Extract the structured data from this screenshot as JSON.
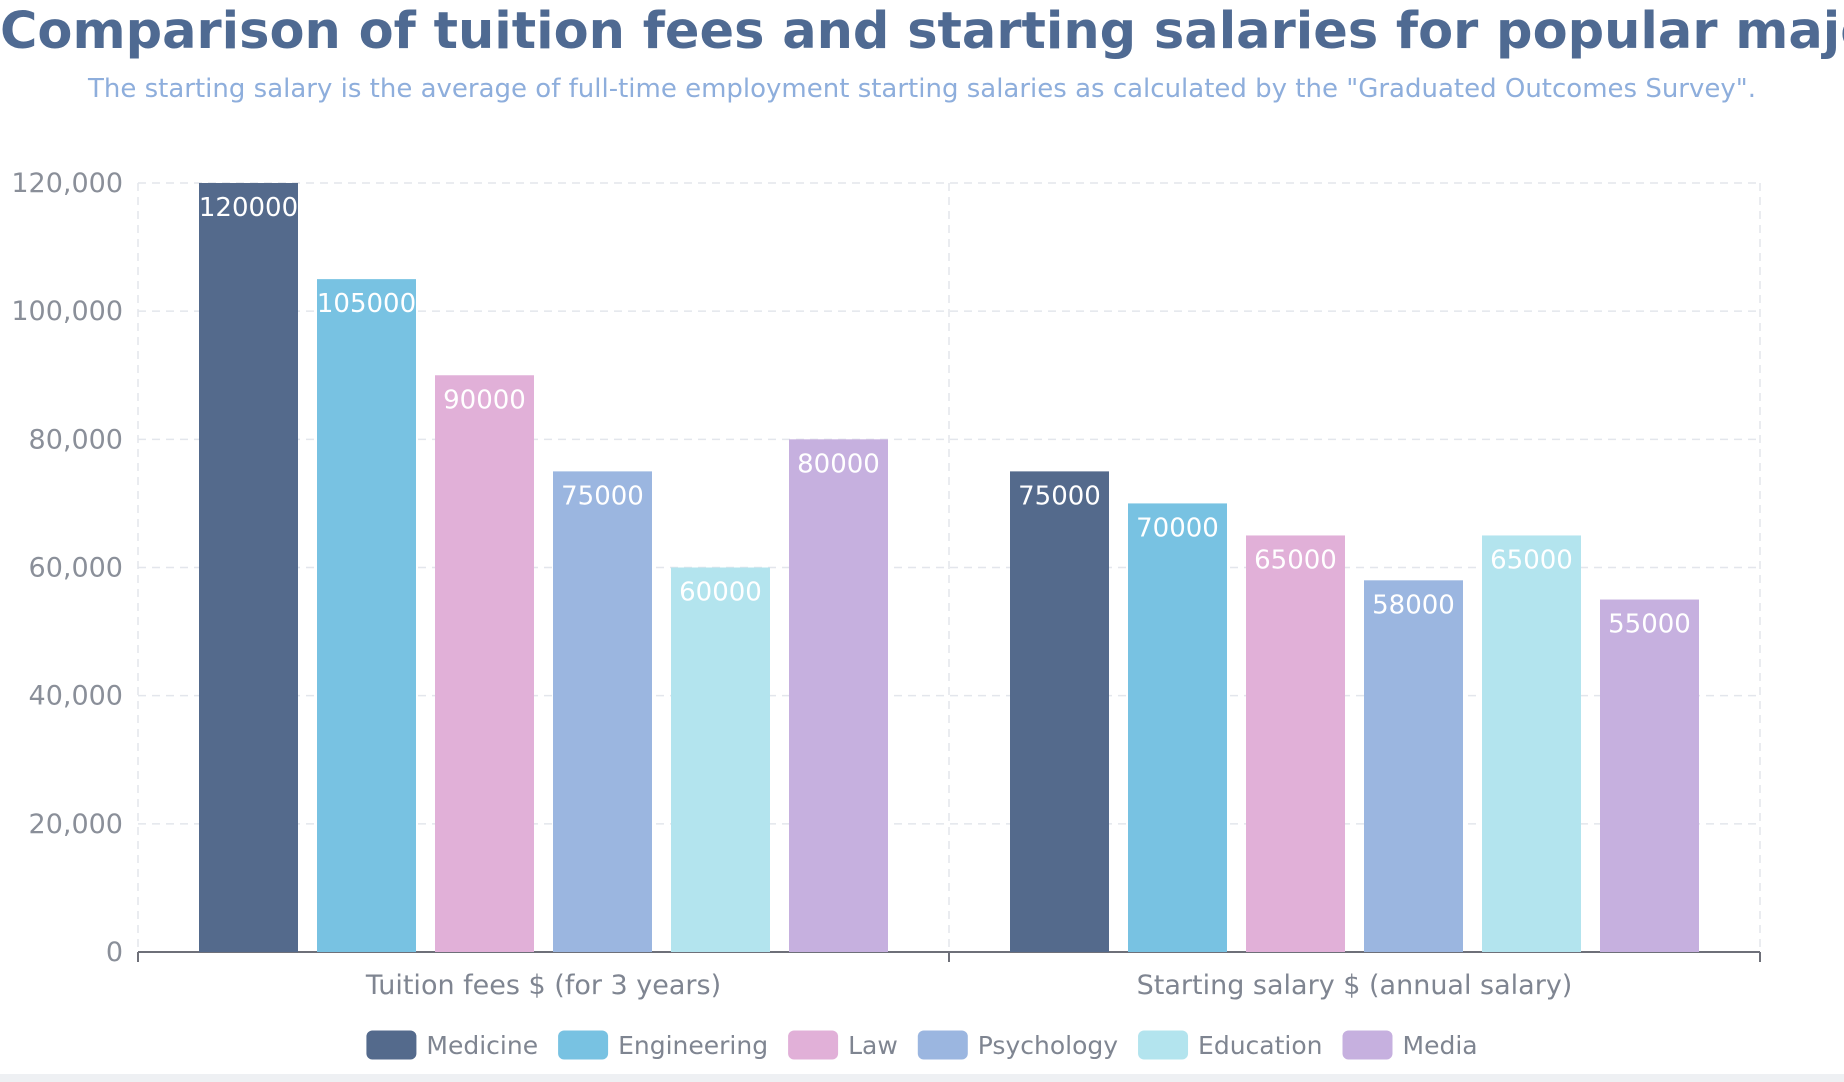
{
  "title": "Comparison of tuition fees and starting salaries for popular majors",
  "subtitle": "The starting salary is the average of full-time employment starting salaries as calculated by the \"Graduated Outcomes Survey\".",
  "chart_data": {
    "type": "bar",
    "title": "Comparison of tuition fees and starting salaries for popular majors",
    "subtitle": "The starting salary is the average of full-time employment starting salaries as calculated by the \"Graduated Outcomes Survey\".",
    "categories": [
      "Tuition fees $ (for 3 years)",
      "Starting salary $ (annual salary)"
    ],
    "series": [
      {
        "name": "Medicine",
        "color": "#546a8c",
        "values": [
          120000,
          75000
        ]
      },
      {
        "name": "Engineering",
        "color": "#78c2e2",
        "values": [
          105000,
          70000
        ]
      },
      {
        "name": "Law",
        "color": "#e1b0d8",
        "values": [
          90000,
          65000
        ]
      },
      {
        "name": "Psychology",
        "color": "#9bb6e0",
        "values": [
          75000,
          58000
        ]
      },
      {
        "name": "Education",
        "color": "#b3e4ee",
        "values": [
          60000,
          65000
        ]
      },
      {
        "name": "Media",
        "color": "#c6b0df",
        "values": [
          80000,
          55000
        ]
      }
    ],
    "ylim": [
      0,
      120000
    ],
    "yticks": [
      0,
      20000,
      40000,
      60000,
      80000,
      100000,
      120000
    ],
    "ytick_labels": [
      "0",
      "20,000",
      "40,000",
      "60,000",
      "80,000",
      "100,000",
      "120,000"
    ],
    "data_labels": true,
    "grid": true,
    "legend_position": "bottom-center"
  }
}
